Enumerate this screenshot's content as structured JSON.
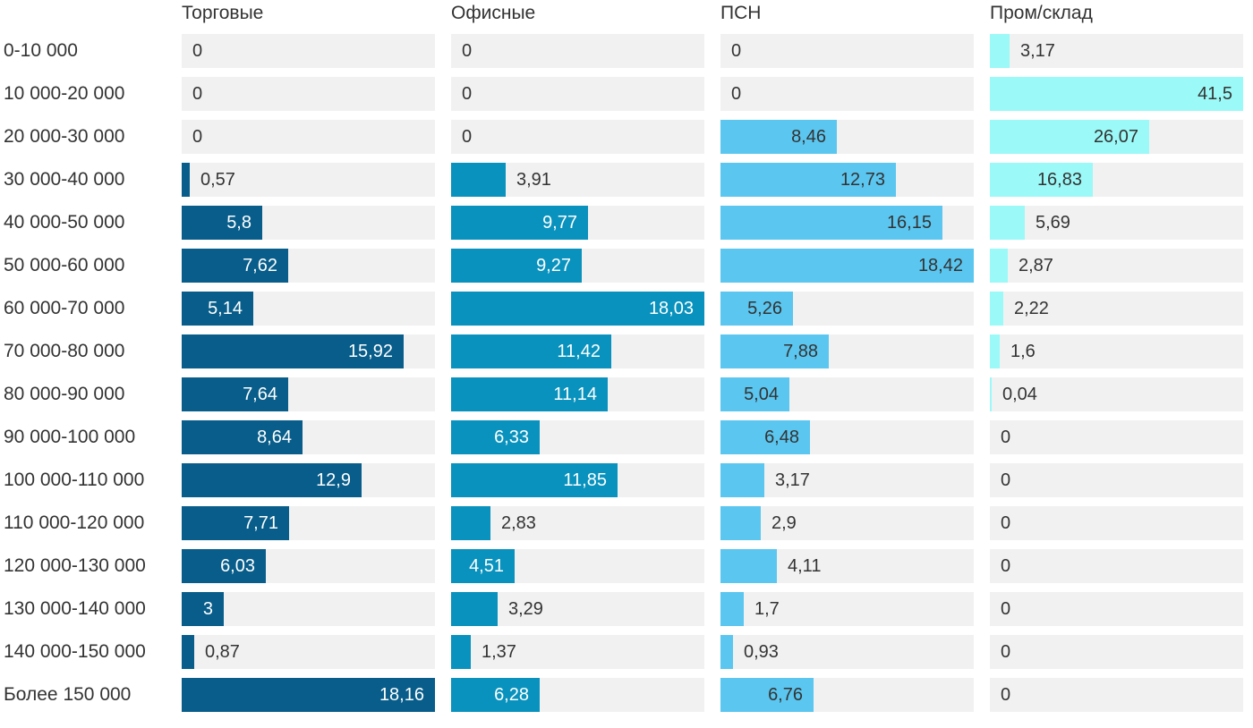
{
  "chart_data": {
    "type": "bar",
    "orientation": "horizontal",
    "title": "",
    "categories": [
      "0-10 000",
      "10 000-20 000",
      "20 000-30 000",
      "30 000-40 000",
      "40 000-50 000",
      "50 000-60 000",
      "60 000-70 000",
      "70 000-80 000",
      "80 000-90 000",
      "90 000-100 000",
      "100 000-110 000",
      "110 000-120 000",
      "120 000-130 000",
      "130 000-140 000",
      "140 000-150 000",
      "Более 150 000"
    ],
    "series": [
      {
        "name": "Торговые",
        "color": "#085d8a",
        "label_color_inside": "#ffffff",
        "values": [
          0,
          0,
          0,
          0.57,
          5.8,
          7.62,
          5.14,
          15.92,
          7.64,
          8.64,
          12.9,
          7.71,
          6.03,
          3,
          0.87,
          18.16
        ],
        "labels": [
          "0",
          "0",
          "0",
          "0,57",
          "5,8",
          "7,62",
          "5,14",
          "15,92",
          "7,64",
          "8,64",
          "12,9",
          "7,71",
          "6,03",
          "3",
          "0,87",
          "18,16"
        ]
      },
      {
        "name": "Офисные",
        "color": "#0992bd",
        "label_color_inside": "#ffffff",
        "values": [
          0,
          0,
          0,
          3.91,
          9.77,
          9.27,
          18.03,
          11.42,
          11.14,
          6.33,
          11.85,
          2.83,
          4.51,
          3.29,
          1.37,
          6.28
        ],
        "labels": [
          "0",
          "0",
          "0",
          "3,91",
          "9,77",
          "9,27",
          "18,03",
          "11,42",
          "11,14",
          "6,33",
          "11,85",
          "2,83",
          "4,51",
          "3,29",
          "1,37",
          "6,28"
        ]
      },
      {
        "name": "ПСН",
        "color": "#5bc6ef",
        "label_color_inside": "#333333",
        "values": [
          0,
          0,
          8.46,
          12.73,
          16.15,
          18.42,
          5.26,
          7.88,
          5.04,
          6.48,
          3.17,
          2.9,
          4.11,
          1.7,
          0.93,
          6.76
        ],
        "labels": [
          "0",
          "0",
          "8,46",
          "12,73",
          "16,15",
          "18,42",
          "5,26",
          "7,88",
          "5,04",
          "6,48",
          "3,17",
          "2,9",
          "4,11",
          "1,7",
          "0,93",
          "6,76"
        ]
      },
      {
        "name": "Пром/склад",
        "color": "#9bf9f7",
        "label_color_inside": "#333333",
        "values": [
          3.17,
          41.5,
          26.07,
          16.83,
          5.69,
          2.87,
          2.22,
          1.6,
          0.04,
          0,
          0,
          0,
          0,
          0,
          0,
          0
        ],
        "labels": [
          "3,17",
          "41,5",
          "26,07",
          "16,83",
          "5,69",
          "2,87",
          "2,22",
          "1,6",
          "0,04",
          "0",
          "0",
          "0",
          "0",
          "0",
          "0",
          "0"
        ]
      }
    ],
    "track_color": "#f1f1f1",
    "text_color": "#333333",
    "xlabel": "",
    "ylabel": "",
    "legend_position": "top",
    "grid": false,
    "scaling": "each column scaled to its own max value = full track width"
  }
}
